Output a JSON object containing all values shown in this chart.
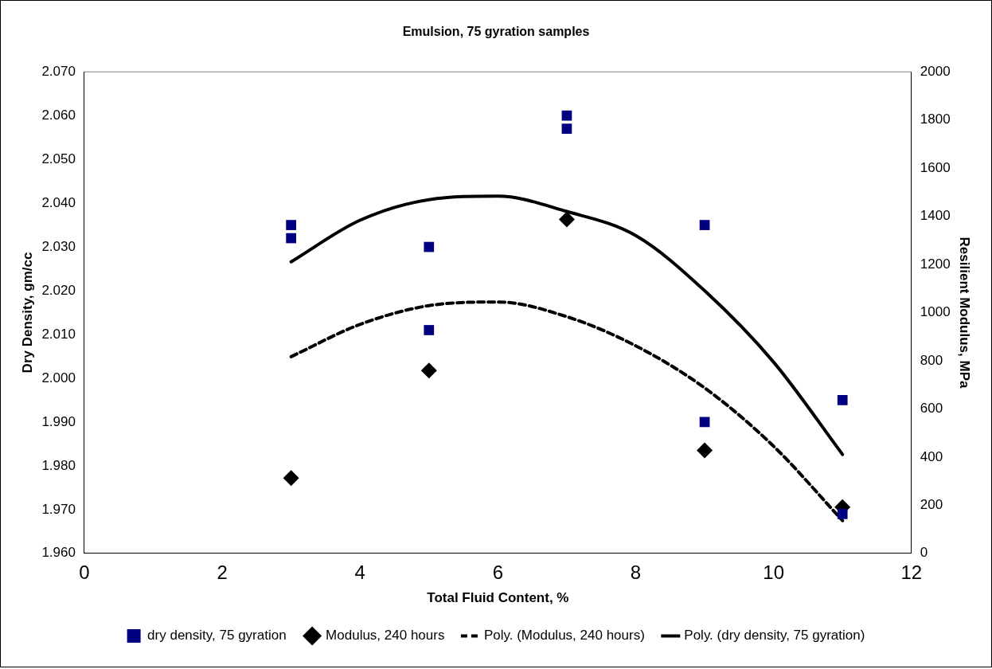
{
  "chart_data": {
    "type": "scatter",
    "title": "Emulsion, 75 gyration samples",
    "xlabel": "Total Fluid Content, %",
    "ylabel": "Dry Density, gm/cc",
    "y2label": "Resilient Modulus, MPa",
    "xlim": [
      0,
      12
    ],
    "xticks": [
      0,
      2,
      4,
      6,
      8,
      10,
      12
    ],
    "ylim": [
      1.96,
      2.07
    ],
    "yticks": [
      {
        "value": 1.96,
        "label": "1.960"
      },
      {
        "value": 1.97,
        "label": "1.970"
      },
      {
        "value": 1.98,
        "label": "1.980"
      },
      {
        "value": 1.99,
        "label": "1.990"
      },
      {
        "value": 2.0,
        "label": "2.000"
      },
      {
        "value": 2.01,
        "label": "2.010"
      },
      {
        "value": 2.02,
        "label": "2.020"
      },
      {
        "value": 2.03,
        "label": "2.030"
      },
      {
        "value": 2.04,
        "label": "2.040"
      },
      {
        "value": 2.05,
        "label": "2.050"
      },
      {
        "value": 2.06,
        "label": "2.060"
      },
      {
        "value": 2.07,
        "label": "2.070"
      }
    ],
    "y2lim": [
      0,
      2000
    ],
    "y2ticks": [
      0,
      200,
      400,
      600,
      800,
      1000,
      1200,
      1400,
      1600,
      1800,
      2000
    ],
    "grid": false,
    "legend": "bottom",
    "series": [
      {
        "name": "dry density, 75 gyration",
        "type": "scatter",
        "marker": "square",
        "color": "#000080",
        "x": [
          3,
          3,
          5,
          5,
          7,
          7,
          9,
          9,
          11,
          11
        ],
        "values": [
          2.035,
          2.032,
          2.03,
          2.011,
          2.06,
          2.057,
          2.035,
          1.99,
          1.995,
          1.969
        ]
      },
      {
        "name": "Modulus, 240 hours",
        "type": "scatter",
        "marker": "diamond",
        "color": "#000000",
        "axis": "y2",
        "x": [
          3,
          5,
          7,
          9,
          11
        ],
        "values": [
          313,
          759,
          1387,
          428,
          192
        ]
      },
      {
        "name": "Poly. (Modulus, 240 hours)",
        "type": "line",
        "marker": "none",
        "line_style": "dashed",
        "color": "#000000",
        "axis": "y2",
        "x": [
          3,
          4,
          5,
          6,
          7,
          8,
          9,
          10,
          11
        ],
        "values": [
          817,
          951,
          1029,
          1044,
          983,
          862,
          687,
          445,
          136
        ]
      },
      {
        "name": "Poly. (dry density, 75 gyration)",
        "type": "line",
        "marker": "none",
        "line_style": "solid",
        "color": "#000000",
        "x": [
          3,
          4,
          5,
          6,
          7,
          8,
          9,
          10,
          11
        ],
        "values": [
          2.0266,
          2.0361,
          2.0408,
          2.0416,
          2.0381,
          2.0326,
          2.02,
          2.0037,
          1.9826
        ]
      }
    ]
  }
}
